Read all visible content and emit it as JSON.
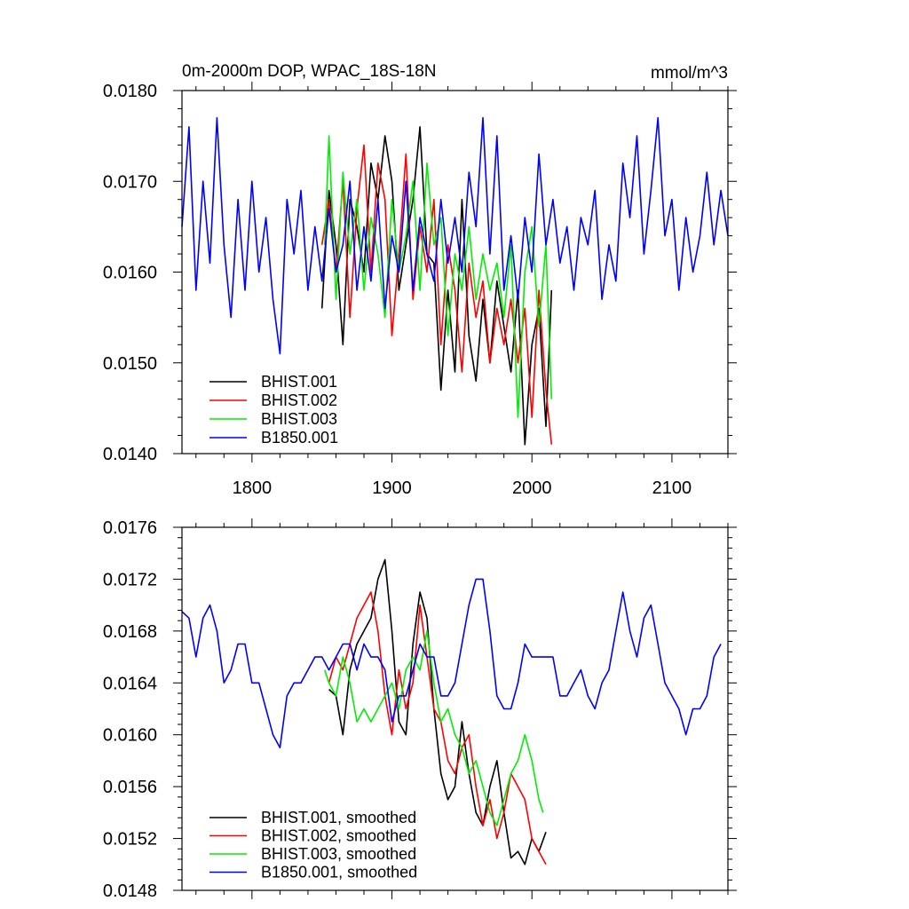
{
  "chart_data": [
    {
      "type": "line",
      "title": "0m-2000m DOP, WPAC_18S-18N",
      "units": "mmol/m^3",
      "xlim": [
        1750,
        2140
      ],
      "ylim": [
        0.014,
        0.018
      ],
      "xticks": [
        1800,
        1900,
        2000,
        2100
      ],
      "xtick_labels": [
        "1800",
        "1900",
        "2000",
        "2100"
      ],
      "yticks": [
        0.014,
        0.015,
        0.016,
        0.017,
        0.018
      ],
      "ytick_labels": [
        "0.0140",
        "0.0150",
        "0.0160",
        "0.0170",
        "0.0180"
      ],
      "legend_position": "bottom-left",
      "series": [
        {
          "name": "BHIST.001",
          "color": "#000000",
          "x": [
            1850,
            1855,
            1860,
            1865,
            1870,
            1875,
            1880,
            1885,
            1890,
            1895,
            1900,
            1905,
            1910,
            1915,
            1920,
            1925,
            1930,
            1935,
            1940,
            1945,
            1950,
            1955,
            1960,
            1965,
            1970,
            1975,
            1980,
            1985,
            1990,
            1995,
            2000,
            2005,
            2010,
            2014
          ],
          "y": [
            0.0156,
            0.0169,
            0.0163,
            0.0152,
            0.0168,
            0.0165,
            0.016,
            0.0172,
            0.0168,
            0.0175,
            0.017,
            0.0158,
            0.0163,
            0.0168,
            0.0176,
            0.0162,
            0.0161,
            0.0147,
            0.0158,
            0.0149,
            0.0168,
            0.0153,
            0.0148,
            0.0157,
            0.015,
            0.0159,
            0.0154,
            0.0149,
            0.0158,
            0.0141,
            0.0152,
            0.0156,
            0.0143,
            0.0158
          ]
        },
        {
          "name": "BHIST.002",
          "color": "#ff0000",
          "x": [
            1850,
            1855,
            1860,
            1865,
            1870,
            1875,
            1880,
            1885,
            1890,
            1895,
            1900,
            1905,
            1910,
            1915,
            1920,
            1925,
            1930,
            1935,
            1940,
            1945,
            1950,
            1955,
            1960,
            1965,
            1970,
            1975,
            1980,
            1985,
            1990,
            1995,
            2000,
            2005,
            2010,
            2014
          ],
          "y": [
            0.0163,
            0.0168,
            0.016,
            0.017,
            0.0155,
            0.0167,
            0.0174,
            0.016,
            0.0172,
            0.0168,
            0.0153,
            0.0162,
            0.0173,
            0.0157,
            0.0165,
            0.016,
            0.0168,
            0.0152,
            0.0163,
            0.0158,
            0.0149,
            0.0161,
            0.0155,
            0.0159,
            0.015,
            0.0156,
            0.0152,
            0.0157,
            0.015,
            0.0156,
            0.0144,
            0.0158,
            0.0147,
            0.0141
          ]
        },
        {
          "name": "BHIST.003",
          "color": "#00ee00",
          "x": [
            1852,
            1855,
            1860,
            1865,
            1870,
            1875,
            1880,
            1885,
            1890,
            1895,
            1900,
            1905,
            1910,
            1915,
            1920,
            1925,
            1930,
            1935,
            1940,
            1945,
            1950,
            1955,
            1960,
            1965,
            1970,
            1975,
            1980,
            1985,
            1990,
            1995,
            2000,
            2005,
            2010,
            2014
          ],
          "y": [
            0.0163,
            0.0175,
            0.0157,
            0.0171,
            0.0162,
            0.0168,
            0.0158,
            0.0166,
            0.0162,
            0.0155,
            0.0168,
            0.016,
            0.0164,
            0.017,
            0.0158,
            0.0172,
            0.0163,
            0.0166,
            0.0153,
            0.0162,
            0.0158,
            0.0165,
            0.0157,
            0.0162,
            0.0158,
            0.0161,
            0.0155,
            0.0163,
            0.0144,
            0.016,
            0.0165,
            0.0154,
            0.0163,
            0.0146
          ]
        },
        {
          "name": "B1850.001",
          "color": "#0000ff",
          "x": [
            1750,
            1755,
            1760,
            1765,
            1770,
            1775,
            1780,
            1785,
            1790,
            1795,
            1800,
            1805,
            1810,
            1815,
            1820,
            1825,
            1830,
            1835,
            1840,
            1845,
            1850,
            1855,
            1860,
            1865,
            1870,
            1875,
            1880,
            1885,
            1890,
            1895,
            1900,
            1905,
            1910,
            1915,
            1920,
            1925,
            1930,
            1935,
            1940,
            1945,
            1950,
            1955,
            1960,
            1965,
            1970,
            1975,
            1980,
            1985,
            1990,
            1995,
            2000,
            2005,
            2010,
            2015,
            2020,
            2025,
            2030,
            2035,
            2040,
            2045,
            2050,
            2055,
            2060,
            2065,
            2070,
            2075,
            2080,
            2085,
            2090,
            2095,
            2100,
            2105,
            2110,
            2115,
            2120,
            2125,
            2130,
            2135,
            2140
          ],
          "y": [
            0.0165,
            0.0176,
            0.0158,
            0.017,
            0.0161,
            0.0177,
            0.0163,
            0.0155,
            0.0168,
            0.0158,
            0.017,
            0.016,
            0.0166,
            0.0157,
            0.0151,
            0.0168,
            0.0162,
            0.0169,
            0.0158,
            0.0165,
            0.0159,
            0.0167,
            0.016,
            0.0163,
            0.017,
            0.0158,
            0.0165,
            0.0159,
            0.0168,
            0.0156,
            0.0164,
            0.016,
            0.017,
            0.0158,
            0.0166,
            0.0162,
            0.0159,
            0.0168,
            0.0161,
            0.0166,
            0.016,
            0.0171,
            0.0165,
            0.0177,
            0.0162,
            0.0175,
            0.0158,
            0.0164,
            0.0157,
            0.0166,
            0.016,
            0.0173,
            0.0163,
            0.0168,
            0.0161,
            0.0165,
            0.0158,
            0.0166,
            0.0163,
            0.0169,
            0.0157,
            0.0163,
            0.0159,
            0.0172,
            0.0166,
            0.0175,
            0.0162,
            0.0169,
            0.0177,
            0.0164,
            0.0168,
            0.0158,
            0.0166,
            0.016,
            0.0164,
            0.0171,
            0.0163,
            0.0169,
            0.0164
          ]
        }
      ]
    },
    {
      "type": "line",
      "xlim": [
        1750,
        2140
      ],
      "ylim": [
        0.0148,
        0.0176
      ],
      "xticks": [
        1800,
        1900,
        2000,
        2100
      ],
      "yticks": [
        0.0148,
        0.0152,
        0.0156,
        0.016,
        0.0164,
        0.0168,
        0.0172,
        0.0176
      ],
      "ytick_labels": [
        "0.0148",
        "0.0152",
        "0.0156",
        "0.0160",
        "0.0164",
        "0.0168",
        "0.0172",
        "0.0176"
      ],
      "legend_position": "bottom-left",
      "series": [
        {
          "name": "BHIST.001, smoothed",
          "color": "#000000",
          "x": [
            1855,
            1860,
            1865,
            1870,
            1875,
            1880,
            1885,
            1890,
            1895,
            1900,
            1905,
            1910,
            1915,
            1920,
            1925,
            1930,
            1935,
            1940,
            1945,
            1950,
            1955,
            1960,
            1965,
            1970,
            1975,
            1980,
            1985,
            1990,
            1995,
            2000,
            2005,
            2010
          ],
          "y": [
            0.01635,
            0.0163,
            0.016,
            0.0165,
            0.0167,
            0.0168,
            0.0169,
            0.0172,
            0.01735,
            0.0168,
            0.0161,
            0.016,
            0.0167,
            0.0171,
            0.0169,
            0.0162,
            0.0157,
            0.0155,
            0.0156,
            0.0161,
            0.0157,
            0.0154,
            0.0153,
            0.0156,
            0.0158,
            0.0154,
            0.01505,
            0.0151,
            0.015,
            0.0152,
            0.0151,
            0.01525
          ]
        },
        {
          "name": "BHIST.002, smoothed",
          "color": "#ff0000",
          "x": [
            1855,
            1860,
            1865,
            1870,
            1875,
            1880,
            1885,
            1890,
            1895,
            1900,
            1905,
            1910,
            1915,
            1920,
            1925,
            1930,
            1935,
            1940,
            1945,
            1950,
            1955,
            1960,
            1965,
            1970,
            1975,
            1980,
            1985,
            1990,
            1995,
            2000,
            2005,
            2010
          ],
          "y": [
            0.0164,
            0.0166,
            0.0165,
            0.0167,
            0.0169,
            0.017,
            0.0171,
            0.0168,
            0.0163,
            0.016,
            0.0165,
            0.0162,
            0.0164,
            0.017,
            0.0166,
            0.0162,
            0.0161,
            0.0158,
            0.0157,
            0.0159,
            0.016,
            0.0156,
            0.0153,
            0.0155,
            0.0152,
            0.0154,
            0.0157,
            0.0156,
            0.0155,
            0.0152,
            0.0151,
            0.015
          ]
        },
        {
          "name": "BHIST.003, smoothed",
          "color": "#00ee00",
          "x": [
            1852,
            1855,
            1860,
            1865,
            1870,
            1875,
            1880,
            1885,
            1890,
            1895,
            1900,
            1905,
            1910,
            1915,
            1920,
            1925,
            1930,
            1935,
            1940,
            1945,
            1950,
            1955,
            1960,
            1965,
            1970,
            1975,
            1980,
            1985,
            1990,
            1995,
            2000,
            2005,
            2008
          ],
          "y": [
            0.0165,
            0.0164,
            0.0163,
            0.0166,
            0.0164,
            0.0161,
            0.0162,
            0.0161,
            0.0162,
            0.0163,
            0.0164,
            0.0162,
            0.0165,
            0.0166,
            0.0165,
            0.0168,
            0.0164,
            0.0161,
            0.0162,
            0.016,
            0.0159,
            0.0157,
            0.0158,
            0.0156,
            0.0154,
            0.0153,
            0.0155,
            0.0157,
            0.0158,
            0.016,
            0.0158,
            0.0155,
            0.0154
          ]
        },
        {
          "name": "B1850.001, smoothed",
          "color": "#0000ff",
          "x": [
            1750,
            1755,
            1760,
            1765,
            1770,
            1775,
            1780,
            1785,
            1790,
            1795,
            1800,
            1805,
            1810,
            1815,
            1820,
            1825,
            1830,
            1835,
            1840,
            1845,
            1850,
            1855,
            1860,
            1865,
            1870,
            1875,
            1880,
            1885,
            1890,
            1895,
            1900,
            1905,
            1910,
            1915,
            1920,
            1925,
            1930,
            1935,
            1940,
            1945,
            1950,
            1955,
            1960,
            1965,
            1970,
            1975,
            1980,
            1985,
            1990,
            1995,
            2000,
            2005,
            2010,
            2015,
            2020,
            2025,
            2030,
            2035,
            2040,
            2045,
            2050,
            2055,
            2060,
            2065,
            2070,
            2075,
            2080,
            2085,
            2090,
            2095,
            2100,
            2105,
            2110,
            2115,
            2120,
            2125,
            2130,
            2135
          ],
          "y": [
            0.01695,
            0.0169,
            0.0166,
            0.0169,
            0.017,
            0.0168,
            0.0164,
            0.0165,
            0.0167,
            0.0167,
            0.0164,
            0.0164,
            0.0162,
            0.016,
            0.0159,
            0.0163,
            0.0164,
            0.0164,
            0.0165,
            0.0166,
            0.0166,
            0.0165,
            0.0166,
            0.0167,
            0.0167,
            0.0165,
            0.0167,
            0.0166,
            0.0166,
            0.0165,
            0.0161,
            0.0163,
            0.0163,
            0.0165,
            0.0167,
            0.0166,
            0.0166,
            0.0163,
            0.0163,
            0.0164,
            0.0167,
            0.017,
            0.0172,
            0.0172,
            0.0168,
            0.0163,
            0.0162,
            0.0162,
            0.0164,
            0.0167,
            0.0166,
            0.0166,
            0.0166,
            0.0166,
            0.0163,
            0.0163,
            0.0164,
            0.0165,
            0.0163,
            0.0162,
            0.0164,
            0.0165,
            0.0168,
            0.0171,
            0.0168,
            0.0166,
            0.0169,
            0.017,
            0.0167,
            0.0164,
            0.0163,
            0.0162,
            0.016,
            0.0162,
            0.0162,
            0.0163,
            0.0166,
            0.0167
          ]
        }
      ]
    }
  ]
}
